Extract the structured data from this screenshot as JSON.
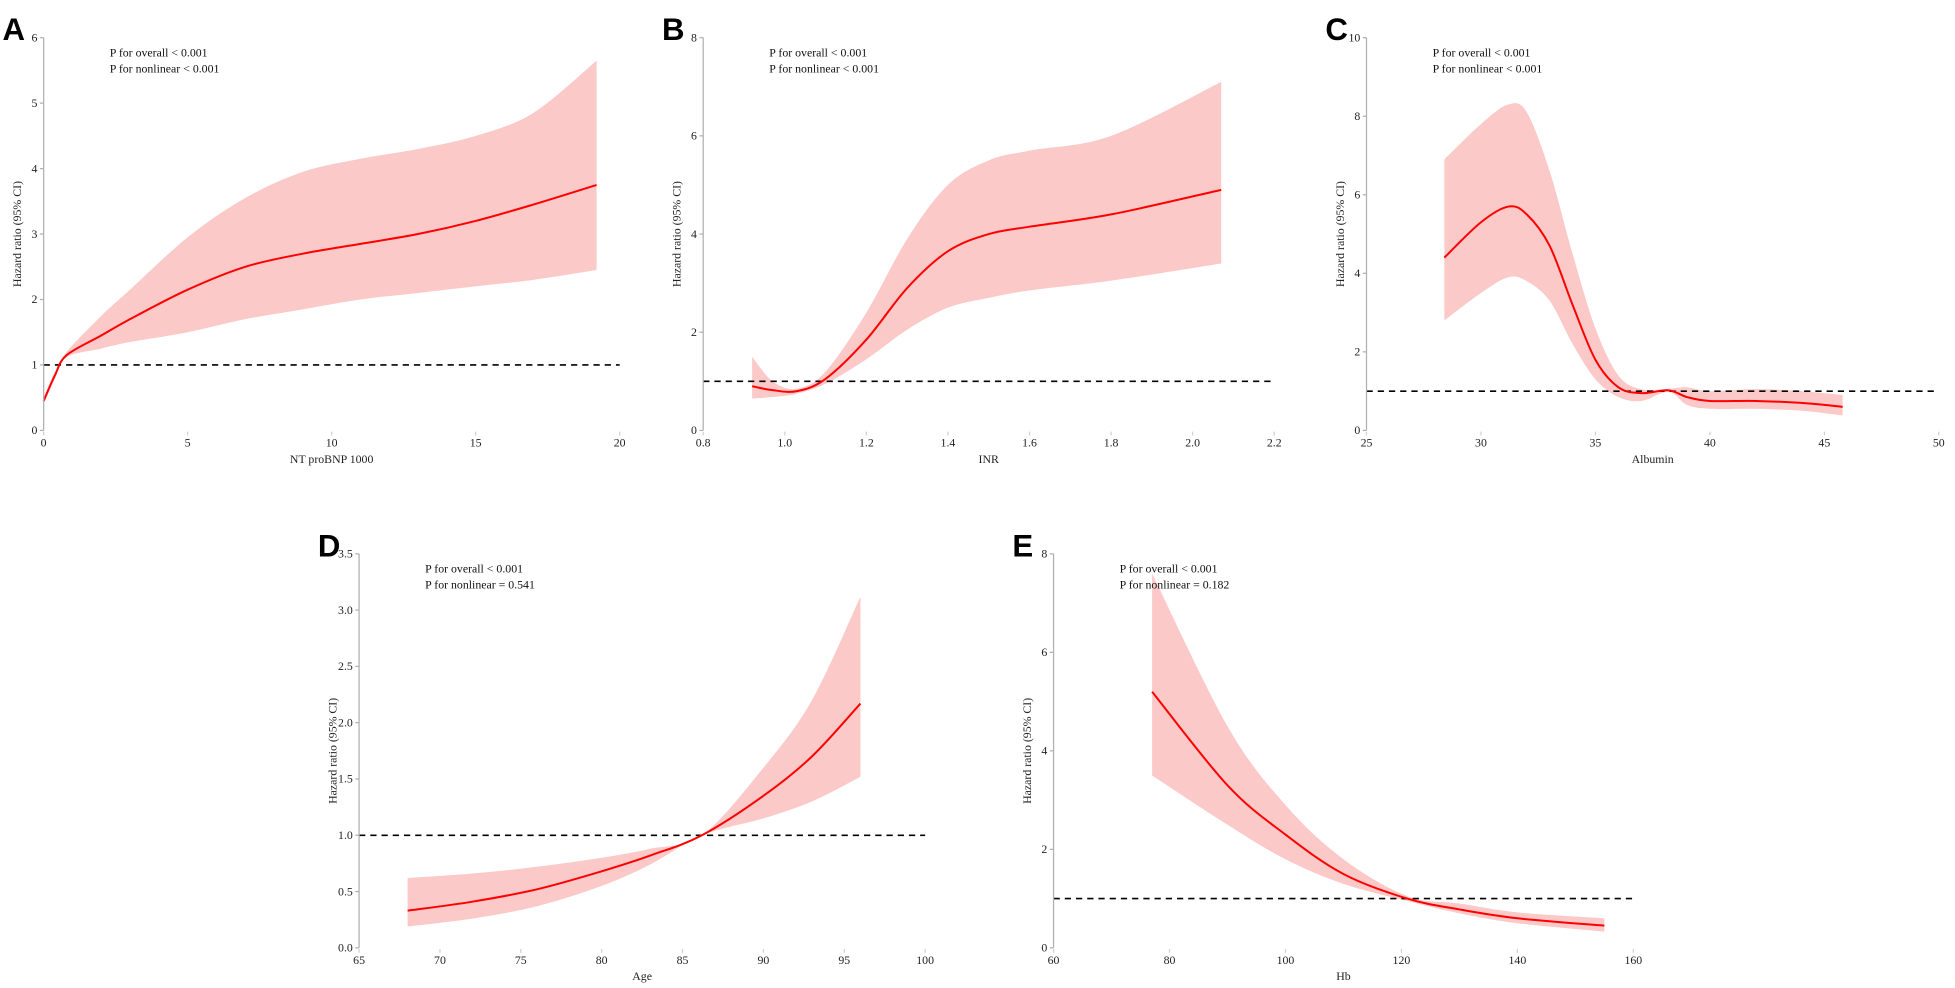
{
  "chart_data": [
    {
      "id": "A",
      "type": "line",
      "panel_label": "A",
      "xlabel": "NT proBNP 1000",
      "ylabel": "Hazard ratio (95% CI)",
      "xlim": [
        0,
        20
      ],
      "ylim": [
        0,
        6
      ],
      "xticks": [
        "0",
        "5",
        "10",
        "15",
        "20"
      ],
      "xtick_values": [
        0,
        5,
        10,
        15,
        20
      ],
      "yticks": [
        "0",
        "1",
        "2",
        "3",
        "4",
        "5",
        "6"
      ],
      "ytick_values": [
        0,
        1,
        2,
        3,
        4,
        5,
        6
      ],
      "annotations": [
        "P for overall < 0.001",
        "P for nonlinear < 0.001"
      ],
      "reference_line": 1,
      "x": [
        0,
        0.4,
        0.8,
        2,
        3,
        5,
        7,
        9,
        11,
        13,
        15,
        17,
        19.2
      ],
      "hr": [
        0.45,
        0.85,
        1.15,
        1.45,
        1.7,
        2.15,
        2.5,
        2.7,
        2.85,
        3.0,
        3.2,
        3.45,
        3.75
      ],
      "upper": [
        0.5,
        0.9,
        1.2,
        1.75,
        2.15,
        2.95,
        3.55,
        3.95,
        4.15,
        4.3,
        4.5,
        4.85,
        5.65
      ],
      "lower": [
        0.4,
        0.8,
        1.12,
        1.25,
        1.35,
        1.5,
        1.7,
        1.85,
        2.0,
        2.1,
        2.2,
        2.3,
        2.45
      ]
    },
    {
      "id": "B",
      "type": "line",
      "panel_label": "B",
      "xlabel": "INR",
      "ylabel": "Hazard ratio (95% CI)",
      "xlim": [
        0.8,
        2.2
      ],
      "ylim": [
        0,
        8
      ],
      "xticks": [
        "0.8",
        "1.0",
        "1.2",
        "1.4",
        "1.6",
        "1.8",
        "2.0",
        "2.2"
      ],
      "xtick_values": [
        0.8,
        1.0,
        1.2,
        1.4,
        1.6,
        1.8,
        2.0,
        2.2
      ],
      "yticks": [
        "0",
        "2",
        "4",
        "6",
        "8"
      ],
      "ytick_values": [
        0,
        2,
        4,
        6,
        8
      ],
      "annotations": [
        "P for overall < 0.001",
        "P for nonlinear < 0.001"
      ],
      "reference_line": 1,
      "x": [
        0.92,
        0.97,
        1.03,
        1.1,
        1.2,
        1.3,
        1.4,
        1.5,
        1.6,
        1.8,
        2.07
      ],
      "hr": [
        0.9,
        0.82,
        0.8,
        1.05,
        1.85,
        2.9,
        3.65,
        4.0,
        4.15,
        4.4,
        4.9
      ],
      "upper": [
        1.5,
        1.0,
        0.85,
        1.2,
        2.4,
        3.9,
        5.0,
        5.5,
        5.7,
        6.0,
        7.1
      ],
      "lower": [
        0.65,
        0.68,
        0.75,
        0.95,
        1.45,
        2.05,
        2.5,
        2.7,
        2.85,
        3.05,
        3.4
      ]
    },
    {
      "id": "C",
      "type": "line",
      "panel_label": "C",
      "xlabel": "Albumin",
      "ylabel": "Hazard ratio (95% CI)",
      "xlim": [
        25,
        50
      ],
      "ylim": [
        0,
        10
      ],
      "xticks": [
        "25",
        "30",
        "35",
        "40",
        "45",
        "50"
      ],
      "xtick_values": [
        25,
        30,
        35,
        40,
        45,
        50
      ],
      "yticks": [
        "0",
        "2",
        "4",
        "6",
        "8",
        "10"
      ],
      "ytick_values": [
        0,
        2,
        4,
        6,
        8,
        10
      ],
      "annotations": [
        "P for overall < 0.001",
        "P for nonlinear < 0.001"
      ],
      "reference_line": 1,
      "x": [
        28.4,
        30,
        31.2,
        32,
        33,
        34,
        35,
        36,
        37,
        38.2,
        39,
        40,
        42,
        44,
        45.8
      ],
      "hr": [
        4.4,
        5.3,
        5.7,
        5.5,
        4.7,
        3.2,
        1.8,
        1.1,
        0.95,
        1.02,
        0.85,
        0.75,
        0.75,
        0.7,
        0.6
      ],
      "upper": [
        6.9,
        7.8,
        8.3,
        8.1,
        6.6,
        4.5,
        2.6,
        1.4,
        1.05,
        1.06,
        1.1,
        1.0,
        1.05,
        1.0,
        0.9
      ],
      "lower": [
        2.8,
        3.5,
        3.9,
        3.8,
        3.3,
        2.2,
        1.3,
        0.85,
        0.75,
        0.98,
        0.65,
        0.55,
        0.55,
        0.5,
        0.38
      ]
    },
    {
      "id": "D",
      "type": "line",
      "panel_label": "D",
      "xlabel": "Age",
      "ylabel": "Hazard ratio (95% CI)",
      "xlim": [
        65,
        100
      ],
      "ylim": [
        0,
        3.5
      ],
      "xticks": [
        "65",
        "70",
        "75",
        "80",
        "85",
        "90",
        "95",
        "100"
      ],
      "xtick_values": [
        65,
        70,
        75,
        80,
        85,
        90,
        95,
        100
      ],
      "yticks": [
        "0.0",
        "0.5",
        "1.0",
        "1.5",
        "2.0",
        "2.5",
        "3.0",
        "3.5"
      ],
      "ytick_values": [
        0,
        0.5,
        1,
        1.5,
        2,
        2.5,
        3,
        3.5
      ],
      "annotations": [
        "P for overall < 0.001",
        "P for nonlinear = 0.541"
      ],
      "reference_line": 1,
      "x": [
        68,
        72,
        76,
        80,
        83,
        86.2,
        90,
        93,
        96
      ],
      "hr": [
        0.33,
        0.41,
        0.52,
        0.68,
        0.82,
        1.0,
        1.35,
        1.7,
        2.17
      ],
      "upper": [
        0.62,
        0.66,
        0.72,
        0.8,
        0.88,
        1.0,
        1.6,
        2.2,
        3.12
      ],
      "lower": [
        0.19,
        0.26,
        0.37,
        0.55,
        0.74,
        1.0,
        1.15,
        1.3,
        1.52
      ]
    },
    {
      "id": "E",
      "type": "line",
      "panel_label": "E",
      "xlabel": "Hb",
      "ylabel": "Hazard ratio (95% CI)",
      "xlim": [
        60,
        160
      ],
      "ylim": [
        0,
        8
      ],
      "xticks": [
        "60",
        "80",
        "100",
        "120",
        "140",
        "160"
      ],
      "xtick_values": [
        60,
        80,
        100,
        120,
        140,
        160
      ],
      "yticks": [
        "0",
        "2",
        "4",
        "6",
        "8"
      ],
      "ytick_values": [
        0,
        2,
        4,
        6,
        8
      ],
      "annotations": [
        "P for overall < 0.001",
        "P for nonlinear = 0.182"
      ],
      "reference_line": 1,
      "x": [
        77,
        90,
        100,
        110,
        121,
        130,
        140,
        155
      ],
      "hr": [
        5.2,
        3.3,
        2.3,
        1.5,
        1.0,
        0.78,
        0.6,
        0.45
      ],
      "upper": [
        7.6,
        4.5,
        2.9,
        1.8,
        1.05,
        0.9,
        0.72,
        0.6
      ],
      "lower": [
        3.5,
        2.5,
        1.8,
        1.3,
        0.95,
        0.7,
        0.5,
        0.33
      ]
    }
  ],
  "colors": {
    "line": "#ff0000",
    "band": "#fcc9c9",
    "axis": "#b0b0b0",
    "reference": "#000000"
  }
}
